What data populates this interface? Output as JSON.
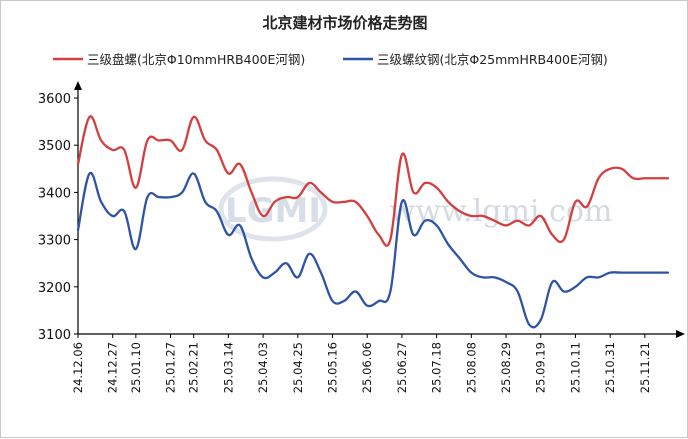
{
  "chart_data": {
    "type": "line",
    "title": "北京建材市场价格走势图",
    "xlabel": "",
    "ylabel": "",
    "ylim": [
      3100,
      3600
    ],
    "yticks": [
      3100,
      3200,
      3300,
      3400,
      3500,
      3600
    ],
    "legend_position": "top",
    "grid": false,
    "x_tick_labels": [
      "24.12.06",
      "24.12.27",
      "25.01.10",
      "25.01.27",
      "25.02.21",
      "25.03.14",
      "25.04.03",
      "25.04.25",
      "25.05.16",
      "25.06.06",
      "25.06.27",
      "25.07.18",
      "25.08.08",
      "25.08.29",
      "25.09.19",
      "25.10.11",
      "25.10.31",
      "25.11.21"
    ],
    "x": [
      "24.12.06",
      "24.12.13",
      "24.12.20",
      "24.12.27",
      "25.01.03",
      "25.01.10",
      "25.01.17",
      "25.01.24",
      "25.01.27",
      "25.02.14",
      "25.02.21",
      "25.02.28",
      "25.03.07",
      "25.03.14",
      "25.03.21",
      "25.03.28",
      "25.04.03",
      "25.04.11",
      "25.04.18",
      "25.04.25",
      "25.05.02",
      "25.05.09",
      "25.05.16",
      "25.05.23",
      "25.05.30",
      "25.06.06",
      "25.06.13",
      "25.06.20",
      "25.06.27",
      "25.07.04",
      "25.07.11",
      "25.07.18",
      "25.07.25",
      "25.08.01",
      "25.08.08",
      "25.08.15",
      "25.08.22",
      "25.08.29",
      "25.09.05",
      "25.09.12",
      "25.09.19",
      "25.09.26",
      "25.10.03",
      "25.10.11",
      "25.10.17",
      "25.10.24",
      "25.10.31",
      "25.11.07",
      "25.11.14",
      "25.11.21",
      "25.11.28",
      "25.12.05"
    ],
    "series": [
      {
        "name": "三级盘螺(北京Φ10mmHRB400E河钢)",
        "color": "#d33f3f",
        "values": [
          3460,
          3560,
          3510,
          3490,
          3490,
          3410,
          3510,
          3510,
          3510,
          3490,
          3560,
          3510,
          3490,
          3440,
          3460,
          3400,
          3350,
          3380,
          3390,
          3390,
          3420,
          3400,
          3380,
          3380,
          3380,
          3350,
          3310,
          3300,
          3480,
          3400,
          3420,
          3410,
          3380,
          3360,
          3350,
          3350,
          3340,
          3330,
          3340,
          3330,
          3350,
          3310,
          3300,
          3380,
          3370,
          3430,
          3450,
          3450,
          3430,
          3430,
          3430,
          3430
        ]
      },
      {
        "name": "三级螺纹钢(北京Φ25mmHRB400E河钢)",
        "color": "#2f54a6",
        "values": [
          3320,
          3440,
          3380,
          3350,
          3360,
          3280,
          3390,
          3390,
          3390,
          3400,
          3440,
          3380,
          3360,
          3310,
          3330,
          3260,
          3220,
          3230,
          3250,
          3220,
          3270,
          3230,
          3170,
          3170,
          3190,
          3160,
          3170,
          3190,
          3380,
          3310,
          3340,
          3330,
          3290,
          3260,
          3230,
          3220,
          3220,
          3210,
          3190,
          3120,
          3130,
          3210,
          3190,
          3200,
          3220,
          3220,
          3230,
          3230,
          3230,
          3230,
          3230,
          3230
        ]
      }
    ]
  },
  "watermark": {
    "logo_text": "LGMI",
    "site_text": "www.lgmi.com"
  }
}
